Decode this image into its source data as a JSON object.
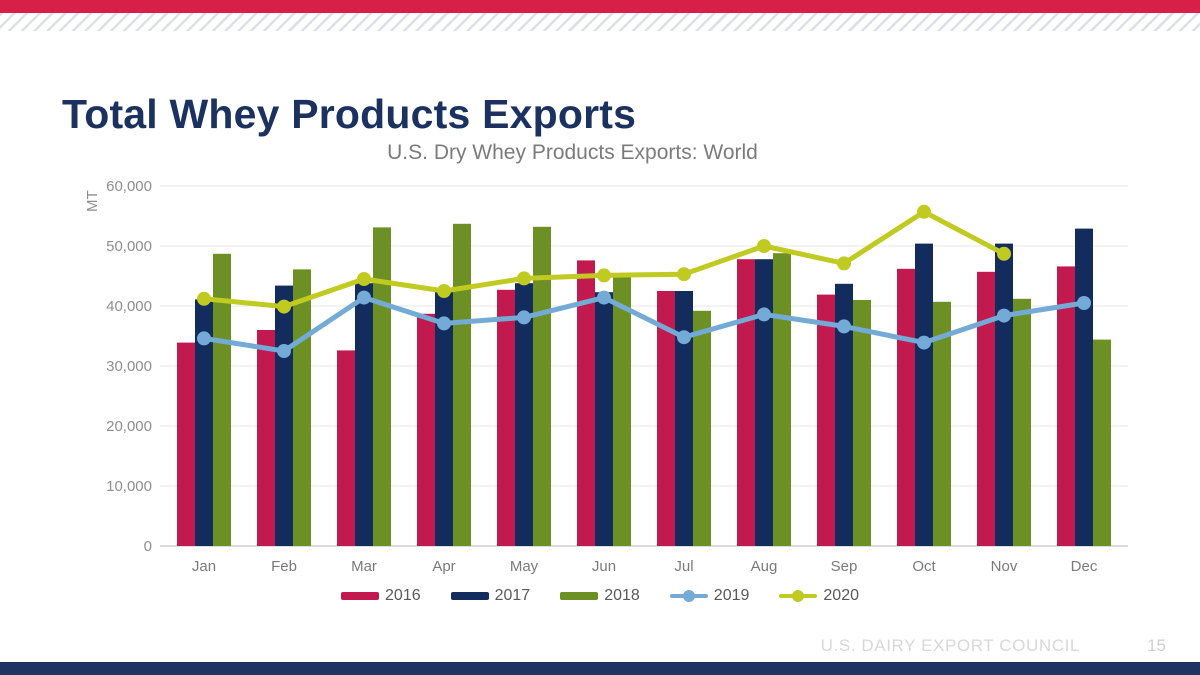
{
  "slide": {
    "title": "Total Whey Products Exports",
    "footer": "U.S. DAIRY EXPORT COUNCIL",
    "page_number": "15",
    "accent_colors": {
      "top_bar_red": "#d71f47",
      "bottom_bar_navy": "#1e3264",
      "title_navy": "#1b3160"
    }
  },
  "chart_data": {
    "type": "bar",
    "subtype": "grouped-bars-with-lines",
    "title": "U.S. Dry Whey Products Exports: World",
    "xlabel": "",
    "ylabel": "MT",
    "ylim": [
      0,
      60000
    ],
    "grid": true,
    "legend_position": "bottom",
    "yticks": [
      "0",
      "10,000",
      "20,000",
      "30,000",
      "40,000",
      "50,000",
      "60,000"
    ],
    "ytick_values": [
      0,
      10000,
      20000,
      30000,
      40000,
      50000,
      60000
    ],
    "categories": [
      "Jan",
      "Feb",
      "Mar",
      "Apr",
      "May",
      "Jun",
      "Jul",
      "Aug",
      "Sep",
      "Oct",
      "Nov",
      "Dec"
    ],
    "series": [
      {
        "name": "2016",
        "type": "bar",
        "color": "#c21a4e",
        "values": [
          33900,
          36000,
          32600,
          38700,
          42700,
          47600,
          42500,
          47800,
          41900,
          46200,
          45700,
          46600
        ]
      },
      {
        "name": "2017",
        "type": "bar",
        "color": "#122c5d",
        "values": [
          41100,
          43400,
          43800,
          42800,
          43800,
          42300,
          42500,
          47800,
          43700,
          50400,
          50400,
          52900
        ]
      },
      {
        "name": "2018",
        "type": "bar",
        "color": "#6c9023",
        "values": [
          48700,
          46100,
          53100,
          53700,
          53200,
          45100,
          39200,
          48800,
          41000,
          40700,
          41200,
          34400
        ]
      },
      {
        "name": "2019",
        "type": "line",
        "color": "#74aad6",
        "values": [
          34600,
          32500,
          41400,
          37100,
          38100,
          41400,
          34800,
          38600,
          36600,
          33900,
          38400,
          40500
        ]
      },
      {
        "name": "2020",
        "type": "line",
        "color": "#c0ca21",
        "values": [
          41200,
          39900,
          44500,
          42500,
          44600,
          45100,
          45300,
          50000,
          47100,
          55700,
          48700,
          null
        ]
      }
    ]
  }
}
